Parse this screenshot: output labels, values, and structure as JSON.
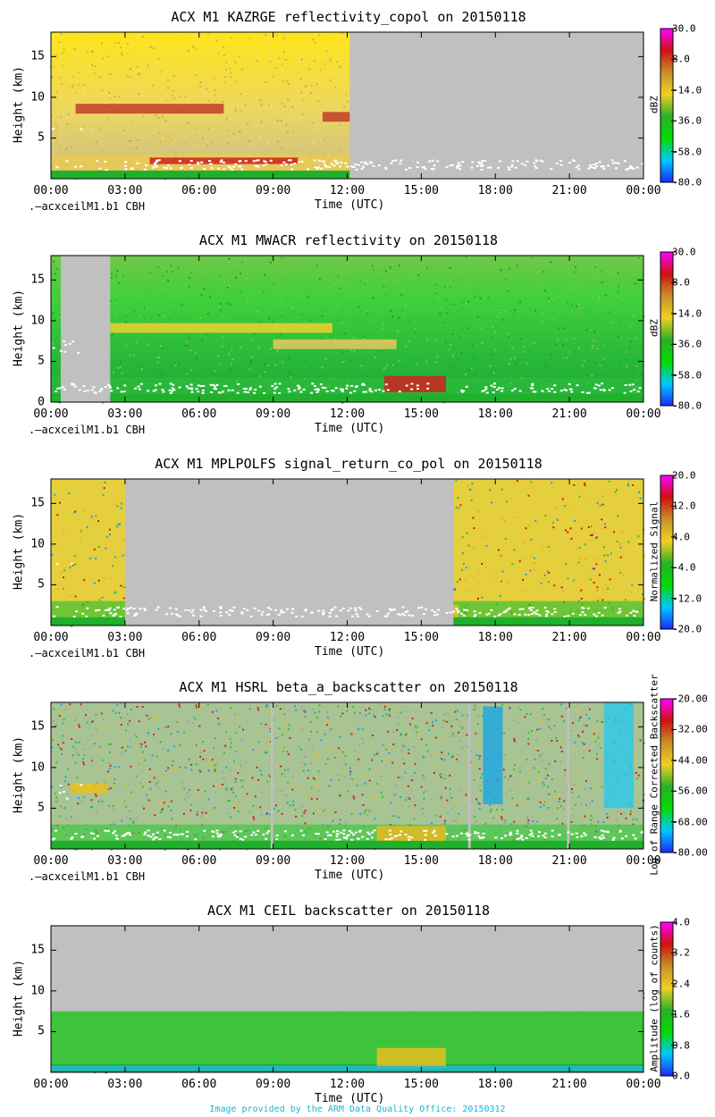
{
  "footer": "Image provided by the ARM Data Quality Office: 20150312",
  "colors": {
    "missing": "#c0c0c0",
    "ceil_marker": "#ffffff",
    "footer_text": "#19b4d4",
    "colormap": [
      "#1a2aff",
      "#00c8ff",
      "#00dc00",
      "#2ab02a",
      "#f0d020",
      "#c89028",
      "#d01010",
      "#ff00ff"
    ]
  },
  "chart_data": [
    {
      "type": "heatmap",
      "title": "ACX M1 KAZRGE reflectivity_copol on 20150118",
      "xlabel": "Time (UTC)",
      "ylabel": "Height (km)",
      "x_ticks": [
        "00:00",
        "03:00",
        "06:00",
        "09:00",
        "12:00",
        "15:00",
        "18:00",
        "21:00",
        "00:00"
      ],
      "y_ticks": [
        5,
        10,
        15
      ],
      "ylim": [
        0,
        18
      ],
      "colorbar_label": "dBZ",
      "colorbar_ticks": [
        "30.0",
        "8.0",
        "-14.0",
        "-36.0",
        "-58.0",
        "-80.0"
      ],
      "overlay_label": ".—acxceilM1.b1 CBH",
      "grid": false,
      "missing_data_hours": [
        [
          12.1,
          24
        ]
      ]
    },
    {
      "type": "heatmap",
      "title": "ACX M1 MWACR reflectivity on 20150118",
      "xlabel": "Time (UTC)",
      "ylabel": "Height (km)",
      "x_ticks": [
        "00:00",
        "03:00",
        "06:00",
        "09:00",
        "12:00",
        "15:00",
        "18:00",
        "21:00",
        "00:00"
      ],
      "y_ticks": [
        0,
        5,
        10,
        15
      ],
      "ylim": [
        0,
        18
      ],
      "colorbar_label": "dBZ",
      "colorbar_ticks": [
        "30.0",
        "8.0",
        "-14.0",
        "-36.0",
        "-58.0",
        "-80.0"
      ],
      "overlay_label": ".—acxceilM1.b1 CBH",
      "grid": false,
      "missing_data_hours": [
        [
          0.4,
          2.4
        ]
      ]
    },
    {
      "type": "heatmap",
      "title": "ACX M1 MPLPOLFS signal_return_co_pol on 20150118",
      "xlabel": "Time (UTC)",
      "ylabel": "Height (km)",
      "x_ticks": [
        "00:00",
        "03:00",
        "06:00",
        "09:00",
        "12:00",
        "15:00",
        "18:00",
        "21:00",
        "00:00"
      ],
      "y_ticks": [
        5,
        10,
        15
      ],
      "ylim": [
        0,
        18
      ],
      "colorbar_label": "Normalized Signal",
      "colorbar_ticks": [
        "20.0",
        "12.0",
        "4.0",
        "-4.0",
        "-12.0",
        "-20.0"
      ],
      "overlay_label": ".—acxceilM1.b1 CBH",
      "grid": false,
      "missing_data_hours": [
        [
          3.0,
          16.3
        ]
      ]
    },
    {
      "type": "heatmap",
      "title": "ACX M1 HSRL beta_a_backscatter on 20150118",
      "xlabel": "Time (UTC)",
      "ylabel": "Height (km)",
      "x_ticks": [
        "00:00",
        "03:00",
        "06:00",
        "09:00",
        "12:00",
        "15:00",
        "18:00",
        "21:00",
        "00:00"
      ],
      "y_ticks": [
        5,
        10,
        15
      ],
      "ylim": [
        0,
        18
      ],
      "colorbar_label": "Log of Range Corrected Backscatter",
      "colorbar_ticks": [
        "-20.00",
        "-32.00",
        "-44.00",
        "-56.00",
        "-68.00",
        "-80.00"
      ],
      "overlay_label": ".—acxceilM1.b1 CBH",
      "grid": false,
      "missing_data_hours": [
        [
          8.9,
          9.0
        ],
        [
          16.9,
          17.0
        ],
        [
          20.9,
          21.0
        ]
      ]
    },
    {
      "type": "heatmap",
      "title": "ACX M1 CEIL backscatter on 20150118",
      "xlabel": "Time (UTC)",
      "ylabel": "Height (km)",
      "x_ticks": [
        "00:00",
        "03:00",
        "06:00",
        "09:00",
        "12:00",
        "15:00",
        "18:00",
        "21:00",
        "00:00"
      ],
      "y_ticks": [
        5,
        10,
        15
      ],
      "ylim": [
        0,
        18
      ],
      "colorbar_label": "Amplitude (log of counts)",
      "colorbar_ticks": [
        "4.0",
        "3.2",
        "2.4",
        "1.6",
        "0.8",
        "0.0"
      ],
      "overlay_label": "",
      "grid": false,
      "missing_data_hours": []
    }
  ]
}
